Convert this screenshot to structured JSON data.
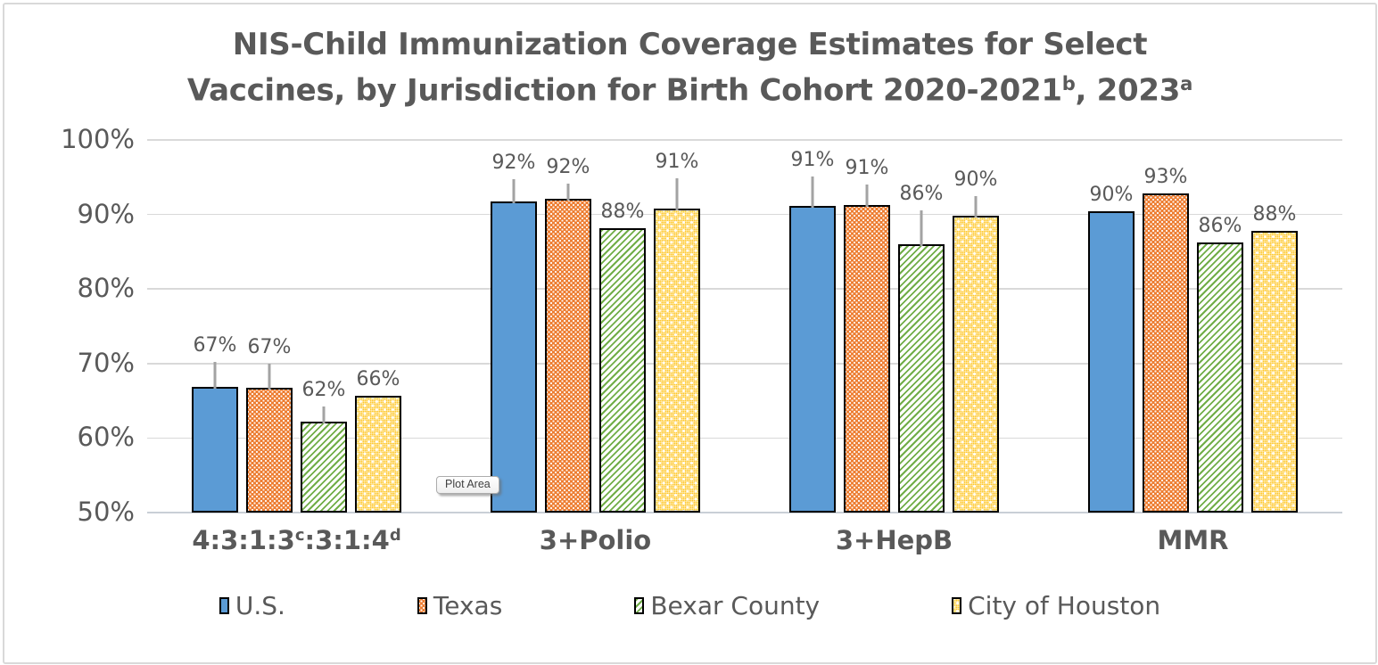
{
  "tooltip": {
    "text": "Plot Area"
  },
  "chart_data": {
    "type": "bar",
    "title_lines": [
      {
        "parts": [
          {
            "t": "NIS-Child Immunization Coverage Estimates for Select"
          }
        ]
      },
      {
        "parts": [
          {
            "t": "Vaccines, by Jurisdiction for Birth Cohort 2020-2021"
          },
          {
            "t": "b",
            "sup": true
          },
          {
            "t": ", 2023"
          },
          {
            "t": "a",
            "sup": true
          }
        ]
      }
    ],
    "categories": [
      {
        "parts": [
          {
            "t": "4:3:1:3"
          },
          {
            "t": "c",
            "sup": true
          },
          {
            "t": ":3:1:4"
          },
          {
            "t": "d",
            "sup": true
          }
        ]
      },
      {
        "parts": [
          {
            "t": "3+Polio"
          }
        ]
      },
      {
        "parts": [
          {
            "t": "3+HepB"
          }
        ]
      },
      {
        "parts": [
          {
            "t": "MMR"
          }
        ]
      }
    ],
    "yticks": [
      "100%",
      "90%",
      "80%",
      "70%",
      "60%",
      "50%"
    ],
    "ylim": [
      50,
      100
    ],
    "grid": true,
    "legend_position": "bottom",
    "series": [
      {
        "name": "U.S.",
        "pattern": "solid",
        "color": "#5B9BD5",
        "values": [
          66.9,
          91.8,
          91.1,
          90.4
        ],
        "labels": [
          "67%",
          "92%",
          "91%",
          "90%"
        ],
        "error_bar_tops": [
          70.2,
          94.7,
          95.1,
          null
        ]
      },
      {
        "name": "Texas",
        "pattern": "dots-dense",
        "color": "#ED7D31",
        "values": [
          66.8,
          92.1,
          91.3,
          92.8
        ],
        "labels": [
          "67%",
          "92%",
          "91%",
          "93%"
        ],
        "error_bar_tops": [
          70.0,
          94.1,
          94.0,
          null
        ]
      },
      {
        "name": "Bexar County",
        "pattern": "diag-stripes",
        "color": "#70AD47",
        "values": [
          62.2,
          88.2,
          86.0,
          86.2
        ],
        "labels": [
          "62%",
          "88%",
          "86%",
          "86%"
        ],
        "error_bar_tops": [
          64.2,
          null,
          90.6,
          null
        ]
      },
      {
        "name": "City of Houston",
        "pattern": "dots-sparse",
        "color": "#FFC727",
        "values": [
          65.7,
          90.8,
          89.8,
          87.8
        ],
        "labels": [
          "66%",
          "91%",
          "90%",
          "88%"
        ],
        "error_bar_tops": [
          null,
          94.8,
          92.5,
          null
        ]
      }
    ]
  }
}
